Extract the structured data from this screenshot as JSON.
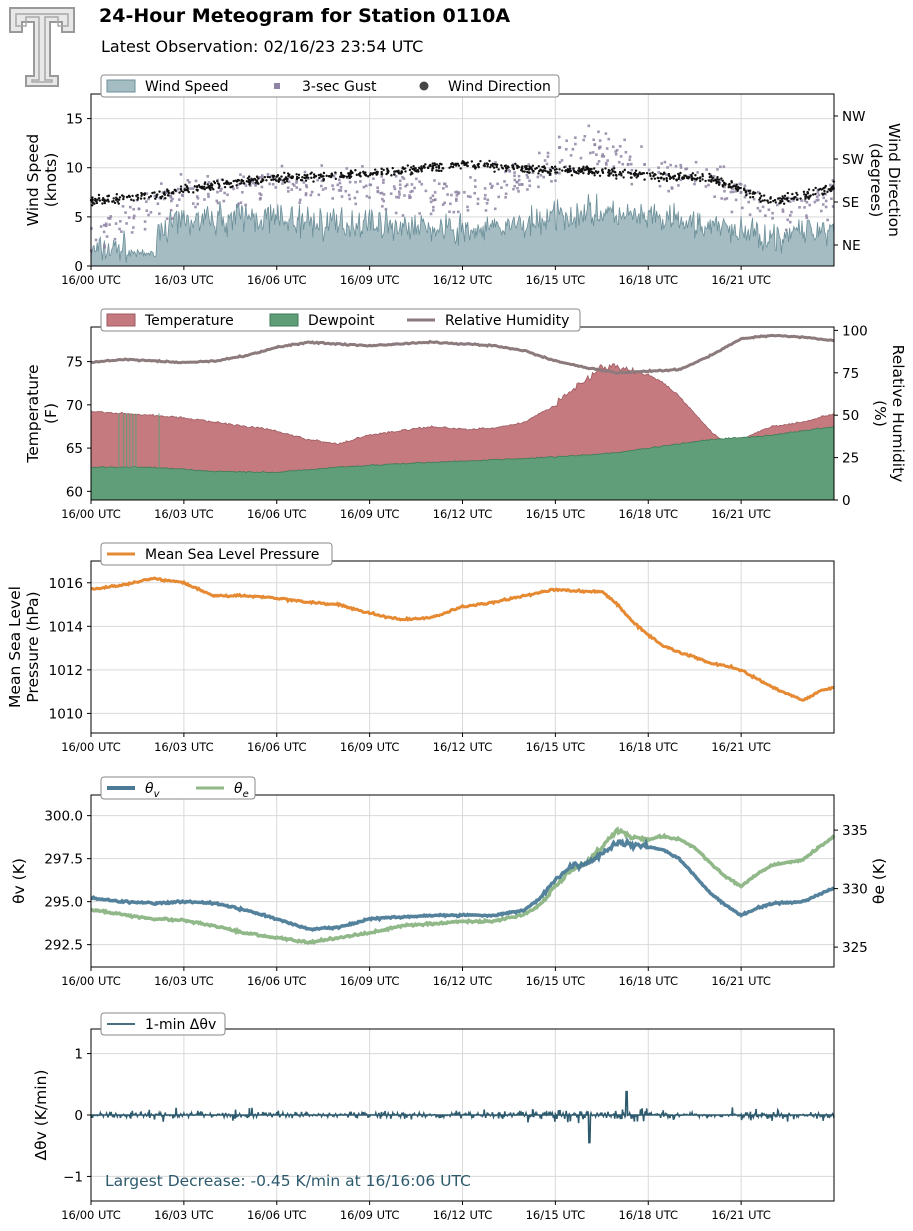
{
  "header": {
    "title": "24-Hour Meteogram for Station 0110A",
    "subtitle": "Latest Observation: 02/16/23 23:54 UTC"
  },
  "colors": {
    "wind_fill": "#a6bcc3",
    "wind_line": "#6b8f99",
    "gust": "#8f84a3",
    "direction": "#111111",
    "temperature": "#c47a7f",
    "dewpoint": "#5f9e79",
    "rh": "#8c7a7c",
    "pressure": "#e58a33",
    "theta_v": "#4b7a96",
    "theta_e": "#90b889",
    "dtheta": "#2e5a6e",
    "annotation": "#2e5a6e"
  },
  "x_ticks": [
    "16/00 UTC",
    "16/03 UTC",
    "16/06 UTC",
    "16/09 UTC",
    "16/12 UTC",
    "16/15 UTC",
    "16/18 UTC",
    "16/21 UTC"
  ],
  "chart_data": [
    {
      "type": "area",
      "id": "wind",
      "ylabel": "Wind Speed\n(knots)",
      "y2label": "Wind Direction\n(degrees)",
      "ylim": [
        0,
        17.5
      ],
      "yticks": [
        0,
        5,
        10,
        15
      ],
      "y2_ticks": [
        "NE",
        "SE",
        "SW",
        "NW"
      ],
      "legend": [
        "Wind Speed",
        "3-sec Gust",
        "Wind Direction"
      ],
      "grid": true,
      "series": [
        {
          "name": "Wind Speed",
          "x_hours": [
            0,
            1,
            2,
            3,
            4,
            5,
            6,
            7,
            8,
            9,
            10,
            11,
            12,
            13,
            14,
            15,
            16,
            17,
            18,
            19,
            20,
            21,
            22,
            23,
            24
          ],
          "values": [
            1.5,
            1.8,
            3.5,
            4.5,
            4.8,
            5.0,
            4.8,
            4.5,
            4.2,
            4.5,
            4.0,
            3.8,
            3.5,
            3.8,
            4.2,
            5.0,
            5.5,
            5.2,
            4.8,
            4.5,
            4.0,
            3.5,
            3.0,
            3.5,
            4.0
          ]
        },
        {
          "name": "3-sec Gust",
          "x_hours": [
            0,
            2,
            4,
            6,
            8,
            10,
            12,
            14,
            16,
            18,
            20,
            22,
            24
          ],
          "values": [
            3.0,
            6.5,
            8.0,
            8.5,
            8.0,
            7.5,
            7.0,
            8.5,
            12.5,
            10.0,
            8.5,
            5.5,
            7.0
          ]
        },
        {
          "name": "Wind Direction",
          "x_hours": [
            0,
            2,
            4,
            6,
            8,
            10,
            12,
            14,
            16,
            18,
            20,
            22,
            24
          ],
          "values_deg": [
            135,
            150,
            170,
            185,
            190,
            200,
            215,
            205,
            200,
            190,
            185,
            135,
            165
          ]
        }
      ]
    },
    {
      "type": "area",
      "id": "temp",
      "ylabel": "Temperature\n(F)",
      "y2label": "Relative Humidity\n(%)",
      "ylim": [
        59,
        79
      ],
      "yticks": [
        60,
        65,
        70,
        75
      ],
      "y2lim": [
        0,
        102
      ],
      "y2ticks": [
        0,
        25,
        50,
        75,
        100
      ],
      "legend": [
        "Temperature",
        "Dewpoint",
        "Relative Humidity"
      ],
      "grid": false,
      "series": [
        {
          "name": "Temperature",
          "x_hours": [
            0,
            1,
            2,
            3,
            4,
            5,
            6,
            7,
            8,
            9,
            10,
            11,
            12,
            13,
            14,
            14.5,
            15,
            15.5,
            16,
            16.5,
            17,
            17.5,
            18,
            18.5,
            19,
            19.5,
            20,
            20.5,
            21,
            21.5,
            22,
            23,
            24
          ],
          "values": [
            69.3,
            69.0,
            68.8,
            68.5,
            68.0,
            67.5,
            67.0,
            66.0,
            65.5,
            66.5,
            67.0,
            67.5,
            67.2,
            67.3,
            68.0,
            69.0,
            70.0,
            71.5,
            73.0,
            74.5,
            74.5,
            74.0,
            73.5,
            72.5,
            71.0,
            69.0,
            67.0,
            65.5,
            66.0,
            66.8,
            67.5,
            68.0,
            69.0
          ]
        },
        {
          "name": "Dewpoint",
          "x_hours": [
            0,
            2,
            4,
            6,
            8,
            10,
            12,
            14,
            16,
            17,
            18,
            19,
            20,
            21,
            22,
            23,
            24
          ],
          "values": [
            62.8,
            62.8,
            62.3,
            62.2,
            62.8,
            63.2,
            63.5,
            63.8,
            64.2,
            64.5,
            65.0,
            65.5,
            66.0,
            66.2,
            66.5,
            67.0,
            67.5
          ]
        },
        {
          "name": "Relative Humidity",
          "x_hours": [
            0,
            1,
            2,
            3,
            4,
            5,
            6,
            7,
            8,
            9,
            10,
            11,
            12,
            13,
            14,
            15,
            16,
            17,
            18,
            19,
            20,
            21,
            22,
            23,
            24
          ],
          "values": [
            81,
            83,
            82,
            81,
            82,
            85,
            90,
            93,
            92,
            91,
            92,
            93,
            92,
            91,
            88,
            82,
            78,
            75,
            76,
            77,
            85,
            95,
            97,
            96,
            94
          ]
        }
      ]
    },
    {
      "type": "line",
      "id": "pressure",
      "ylabel": "Mean Sea Level\nPressure (hPa)",
      "ylim": [
        1009.1,
        1017
      ],
      "yticks": [
        1010,
        1012,
        1014,
        1016
      ],
      "legend": [
        "Mean Sea Level Pressure"
      ],
      "grid": true,
      "series": [
        {
          "name": "Mean Sea Level Pressure",
          "x_hours": [
            0,
            1,
            2,
            3,
            4,
            5,
            6,
            7,
            8,
            9,
            10,
            11,
            12,
            13,
            14,
            15,
            16,
            16.5,
            17,
            17.5,
            18,
            18.5,
            19,
            19.5,
            20,
            20.5,
            21,
            21.5,
            22,
            22.5,
            23,
            23.5,
            24
          ],
          "values": [
            1015.7,
            1015.9,
            1016.2,
            1016.0,
            1015.4,
            1015.4,
            1015.3,
            1015.1,
            1015.0,
            1014.6,
            1014.3,
            1014.4,
            1014.9,
            1015.1,
            1015.4,
            1015.7,
            1015.6,
            1015.6,
            1015.0,
            1014.2,
            1013.6,
            1013.1,
            1012.8,
            1012.6,
            1012.3,
            1012.2,
            1012.0,
            1011.6,
            1011.2,
            1010.9,
            1010.6,
            1011.0,
            1011.2
          ]
        }
      ]
    },
    {
      "type": "line",
      "id": "theta",
      "ylabel": "θv (K)",
      "y2label": "θe (K)",
      "ylim": [
        291.2,
        301.2
      ],
      "yticks": [
        292.5,
        295.0,
        297.5,
        300.0
      ],
      "y2lim": [
        323.3,
        338.0
      ],
      "y2ticks": [
        325,
        330,
        335
      ],
      "legend": [
        "θv",
        "θe"
      ],
      "grid": true,
      "series": [
        {
          "name": "θv",
          "x_hours": [
            0,
            1,
            2,
            3,
            4,
            5,
            6,
            7,
            8,
            9,
            10,
            11,
            12,
            13,
            14,
            14.5,
            15,
            15.5,
            16,
            16.5,
            17,
            17.5,
            18,
            18.5,
            19,
            19.5,
            20,
            20.5,
            21,
            21.5,
            22,
            23,
            24
          ],
          "values": [
            295.2,
            295.0,
            294.9,
            295.0,
            294.9,
            294.5,
            294.0,
            293.4,
            293.5,
            294.0,
            294.1,
            294.2,
            294.2,
            294.2,
            294.5,
            295.2,
            296.3,
            297.0,
            297.2,
            297.8,
            298.5,
            298.3,
            298.2,
            298.0,
            297.5,
            296.5,
            295.5,
            294.8,
            294.2,
            294.6,
            294.9,
            295.0,
            295.8
          ]
        },
        {
          "name": "θe",
          "x_hours": [
            0,
            1,
            2,
            3,
            4,
            5,
            6,
            7,
            8,
            9,
            10,
            11,
            12,
            13,
            14,
            14.5,
            15,
            15.5,
            16,
            16.5,
            17,
            17.5,
            18,
            18.5,
            19,
            19.5,
            20,
            20.5,
            21,
            21.5,
            22,
            23,
            24
          ],
          "values": [
            328.2,
            327.8,
            327.4,
            327.3,
            326.8,
            326.2,
            325.8,
            325.4,
            325.8,
            326.2,
            326.8,
            327.0,
            327.2,
            327.2,
            327.8,
            328.6,
            330.2,
            331.5,
            332.2,
            333.5,
            335.0,
            334.5,
            334.2,
            334.5,
            334.2,
            333.5,
            332.2,
            331.0,
            330.2,
            331.2,
            332.0,
            332.5,
            334.5
          ]
        }
      ]
    },
    {
      "type": "line",
      "id": "dtheta",
      "ylabel": "Δθv (K/min)",
      "ylim": [
        -1.4,
        1.4
      ],
      "yticks": [
        -1,
        0,
        1
      ],
      "legend": [
        "1-min Δθv"
      ],
      "annotation": "Largest Decrease: -0.45 K/min at 16/16:06 UTC",
      "grid": true,
      "series": [
        {
          "name": "1-min Δθv",
          "x_hours": [
            0,
            24
          ],
          "values": [
            0,
            0
          ],
          "extremes": {
            "min": -0.45,
            "min_at_hours": 16.1,
            "max": 0.38,
            "max_at_hours": 17.3
          }
        }
      ]
    }
  ]
}
